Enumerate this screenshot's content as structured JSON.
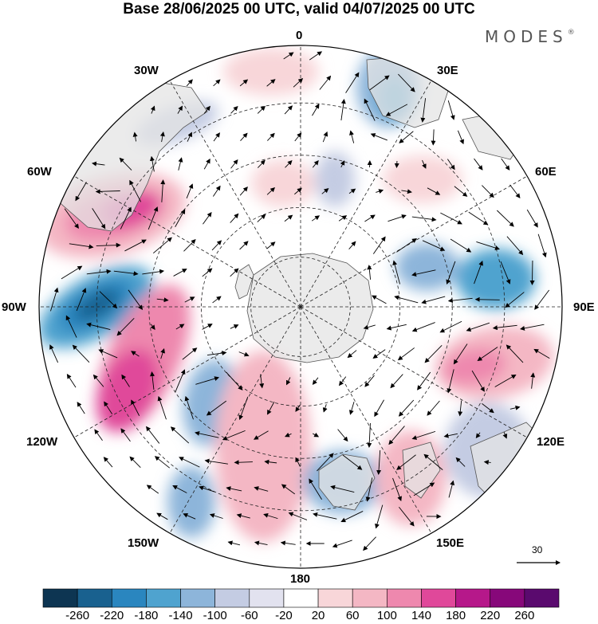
{
  "title": "Base 28/06/2025 00 UTC, valid 04/07/2025 00 UTC",
  "brand": {
    "name": "MODES",
    "mark": "®"
  },
  "longitude_labels": [
    "0",
    "30E",
    "60E",
    "90E",
    "120E",
    "150E",
    "180",
    "150W",
    "120W",
    "90W",
    "60W",
    "30W"
  ],
  "reference_vector": {
    "value": "30"
  },
  "colorbar": {
    "ticks": [
      "-260",
      "-220",
      "-180",
      "-140",
      "-100",
      "-60",
      "-20",
      "20",
      "60",
      "100",
      "140",
      "180",
      "220",
      "260"
    ],
    "colors": [
      "#0d3552",
      "#19618f",
      "#2a86bf",
      "#4fa3cf",
      "#8db5da",
      "#c4cce3",
      "#e2e2ef",
      "#ffffff",
      "#f8d6d9",
      "#f4b7c4",
      "#ee88ae",
      "#e0489a",
      "#b6188a",
      "#87087a",
      "#5a0a6e"
    ]
  },
  "colors": {
    "land": "#e4e4e4",
    "coast": "#555555",
    "grid": "#222222"
  }
}
